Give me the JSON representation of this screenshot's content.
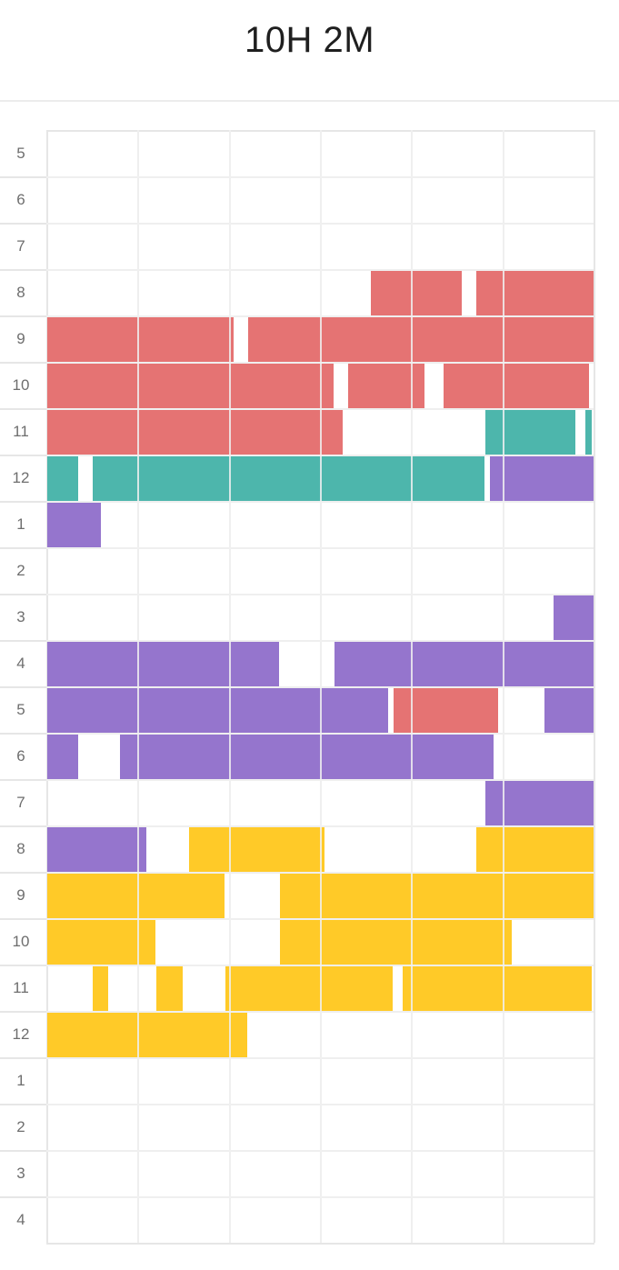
{
  "header": {
    "title": "10H 2M"
  },
  "colors": {
    "red": "#e57373",
    "teal": "#4db6ac",
    "purple": "#9575cd",
    "yellow": "#ffca28",
    "grid_line": "#e6e6e6",
    "label": "#6e6e6e",
    "title": "#1f1f1f"
  },
  "chart_data": {
    "type": "timeline",
    "minutes_per_row": 60,
    "columns_per_row": 6,
    "hours": [
      "5",
      "6",
      "7",
      "8",
      "9",
      "10",
      "11",
      "12",
      "1",
      "2",
      "3",
      "4",
      "5",
      "6",
      "7",
      "8",
      "9",
      "10",
      "11",
      "12",
      "1",
      "2",
      "3",
      "4"
    ],
    "segments": [
      {
        "row": 3,
        "start": 35.5,
        "end": 45.5,
        "color": "red"
      },
      {
        "row": 3,
        "start": 47.0,
        "end": 60.0,
        "color": "red"
      },
      {
        "row": 4,
        "start": 0.0,
        "end": 20.5,
        "color": "red"
      },
      {
        "row": 4,
        "start": 22.0,
        "end": 60.0,
        "color": "red"
      },
      {
        "row": 5,
        "start": 0.0,
        "end": 31.5,
        "color": "red"
      },
      {
        "row": 5,
        "start": 33.0,
        "end": 41.5,
        "color": "red"
      },
      {
        "row": 5,
        "start": 43.5,
        "end": 59.5,
        "color": "red"
      },
      {
        "row": 6,
        "start": 0.0,
        "end": 32.5,
        "color": "red"
      },
      {
        "row": 6,
        "start": 48.0,
        "end": 58.0,
        "color": "teal"
      },
      {
        "row": 6,
        "start": 59.0,
        "end": 59.8,
        "color": "teal"
      },
      {
        "row": 7,
        "start": 0.0,
        "end": 3.5,
        "color": "teal"
      },
      {
        "row": 7,
        "start": 5.0,
        "end": 48.0,
        "color": "teal"
      },
      {
        "row": 7,
        "start": 48.5,
        "end": 60.0,
        "color": "purple"
      },
      {
        "row": 8,
        "start": 0.0,
        "end": 6.0,
        "color": "purple"
      },
      {
        "row": 10,
        "start": 55.5,
        "end": 59.0,
        "color": "purple"
      },
      {
        "row": 10,
        "start": 57.5,
        "end": 60.0,
        "color": "purple"
      },
      {
        "row": 11,
        "start": 0.0,
        "end": 25.5,
        "color": "purple"
      },
      {
        "row": 11,
        "start": 31.5,
        "end": 60.0,
        "color": "purple"
      },
      {
        "row": 12,
        "start": 0.0,
        "end": 37.5,
        "color": "purple"
      },
      {
        "row": 12,
        "start": 38.0,
        "end": 49.5,
        "color": "red"
      },
      {
        "row": 12,
        "start": 54.5,
        "end": 60.0,
        "color": "purple"
      },
      {
        "row": 13,
        "start": 0.0,
        "end": 3.5,
        "color": "purple"
      },
      {
        "row": 13,
        "start": 8.0,
        "end": 49.0,
        "color": "purple"
      },
      {
        "row": 14,
        "start": 48.0,
        "end": 60.0,
        "color": "purple"
      },
      {
        "row": 15,
        "start": 0.0,
        "end": 11.0,
        "color": "purple"
      },
      {
        "row": 15,
        "start": 15.5,
        "end": 30.5,
        "color": "yellow"
      },
      {
        "row": 15,
        "start": 47.0,
        "end": 60.0,
        "color": "yellow"
      },
      {
        "row": 16,
        "start": 0.0,
        "end": 19.5,
        "color": "yellow"
      },
      {
        "row": 16,
        "start": 25.5,
        "end": 60.0,
        "color": "yellow"
      },
      {
        "row": 17,
        "start": 0.0,
        "end": 12.0,
        "color": "yellow"
      },
      {
        "row": 17,
        "start": 25.5,
        "end": 51.0,
        "color": "yellow"
      },
      {
        "row": 18,
        "start": 5.0,
        "end": 6.8,
        "color": "yellow"
      },
      {
        "row": 18,
        "start": 12.0,
        "end": 15.0,
        "color": "yellow"
      },
      {
        "row": 18,
        "start": 19.5,
        "end": 38.0,
        "color": "yellow"
      },
      {
        "row": 18,
        "start": 39.0,
        "end": 59.8,
        "color": "yellow"
      },
      {
        "row": 19,
        "start": 0.0,
        "end": 22.0,
        "color": "yellow"
      }
    ]
  }
}
